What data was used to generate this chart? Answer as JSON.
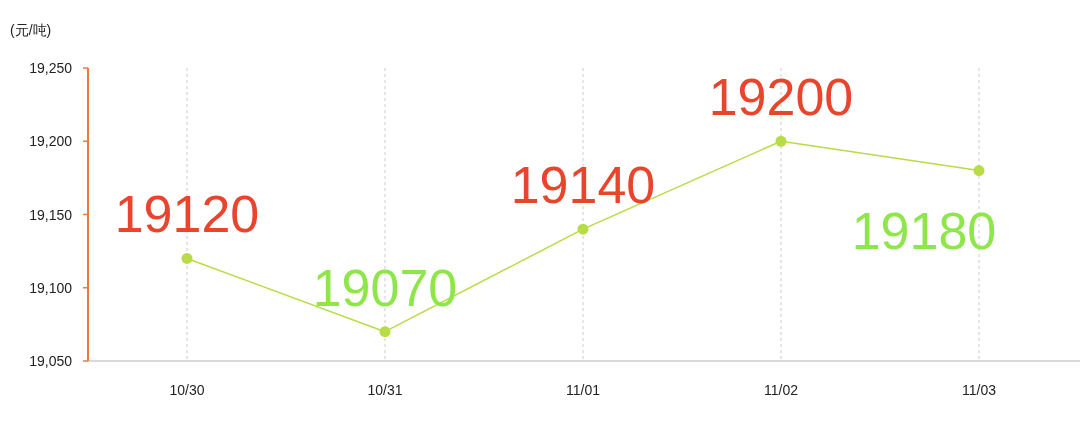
{
  "chart_data": {
    "type": "line",
    "ylabel": "(元/吨)",
    "categories": [
      "10/30",
      "10/31",
      "11/01",
      "11/02",
      "11/03"
    ],
    "series": [
      {
        "color": "#b8dc45",
        "values": [
          19120,
          19070,
          19140,
          19200,
          19180
        ]
      }
    ],
    "ylim": [
      19050,
      19250
    ],
    "yticks": [
      {
        "value": 19050,
        "label": "19,050"
      },
      {
        "value": 19100,
        "label": "19,100"
      },
      {
        "value": 19150,
        "label": "19,150"
      },
      {
        "value": 19200,
        "label": "19,200"
      },
      {
        "value": 19250,
        "label": "19,250"
      }
    ],
    "grid": "x",
    "marker": "circle",
    "data_labels": true
  }
}
